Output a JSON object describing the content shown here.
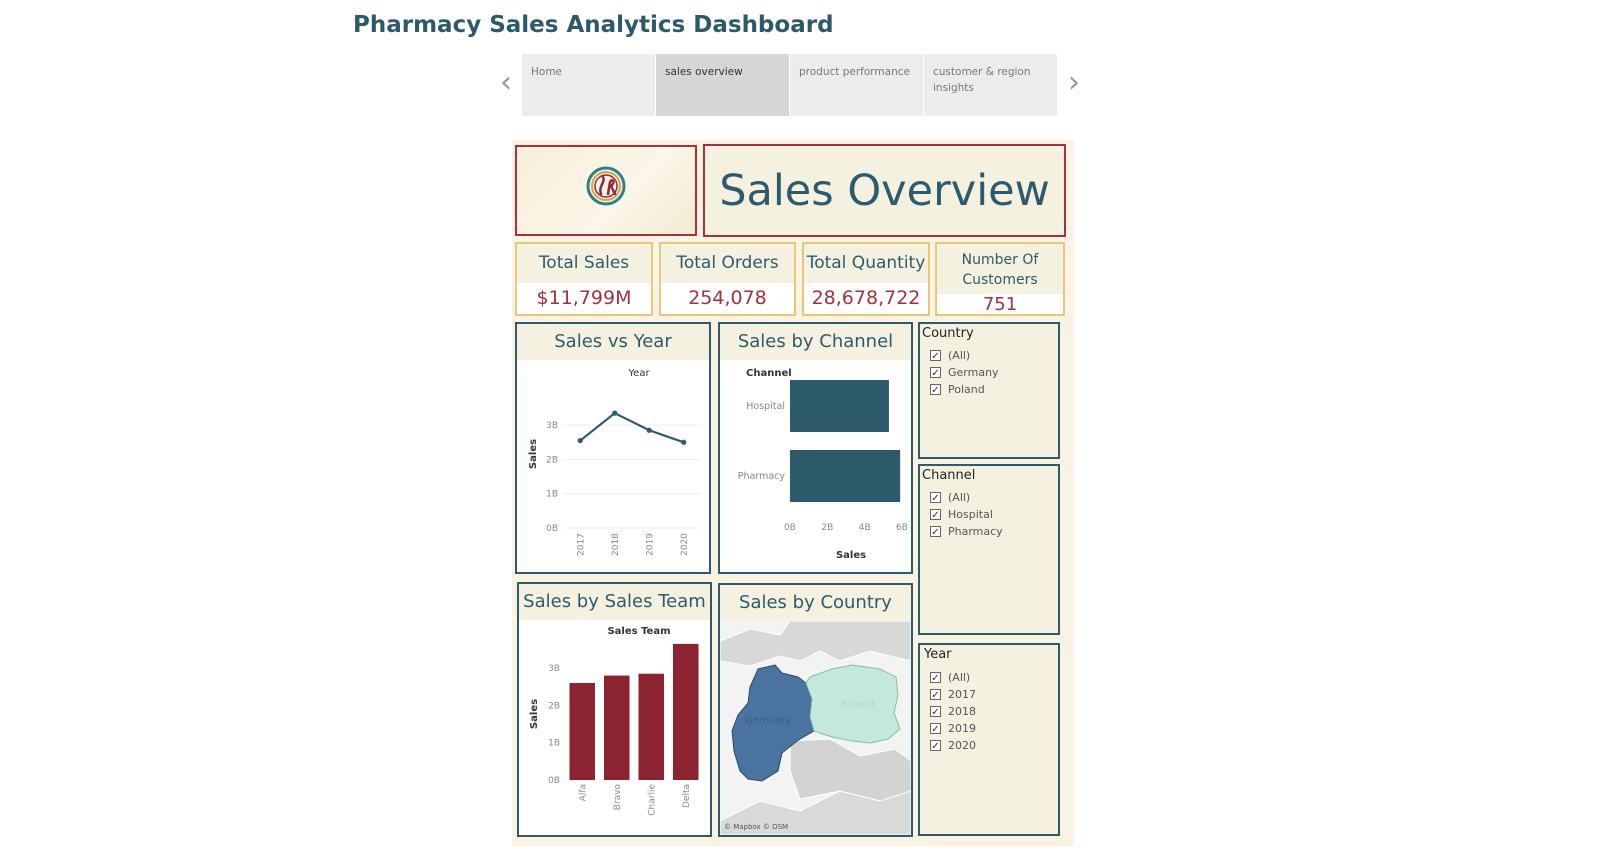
{
  "page": {
    "title": "Pharmacy Sales Analytics Dashboard"
  },
  "nav": {
    "tabs": [
      {
        "label": "Home",
        "active": false
      },
      {
        "label": "sales overview",
        "active": true
      },
      {
        "label": "product performance",
        "active": false
      },
      {
        "label": "customer & region insights",
        "active": false
      }
    ]
  },
  "header": {
    "title": "Sales Overview"
  },
  "kpis": [
    {
      "label": "Total Sales",
      "value": "$11,799M"
    },
    {
      "label": "Total Orders",
      "value": "254,078"
    },
    {
      "label": "Total Quantity",
      "value": "28,678,722"
    },
    {
      "label": "Number Of Customers",
      "value": "751"
    }
  ],
  "charts": {
    "sales_vs_year": {
      "title": "Sales vs Year",
      "chart_data": {
        "type": "line",
        "header": "Year",
        "ylabel": "Sales",
        "x": [
          "2017",
          "2018",
          "2019",
          "2020"
        ],
        "y_ticks": [
          "0B",
          "1B",
          "2B",
          "3B"
        ],
        "ylim": [
          0,
          4.2
        ],
        "values": [
          2.55,
          3.35,
          2.85,
          2.5
        ],
        "color": "#2e5b6b"
      }
    },
    "sales_by_channel": {
      "title": "Sales by Channel",
      "chart_data": {
        "type": "bar",
        "orientation": "horizontal",
        "header": "Channel",
        "xlabel": "Sales",
        "categories": [
          "Hospital",
          "Pharmacy"
        ],
        "values": [
          5.3,
          5.9
        ],
        "x_ticks": [
          "0B",
          "2B",
          "4B",
          "6B"
        ],
        "xlim": [
          0,
          6
        ],
        "color": "#2e5b6b"
      }
    },
    "sales_by_team": {
      "title": "Sales by Sales Team",
      "chart_data": {
        "type": "bar",
        "header": "Sales Team",
        "ylabel": "Sales",
        "categories": [
          "Alfa",
          "Bravo",
          "Charlie",
          "Delta"
        ],
        "values": [
          2.6,
          2.8,
          2.85,
          3.65
        ],
        "y_ticks": [
          "0B",
          "1B",
          "2B",
          "3B"
        ],
        "ylim": [
          0,
          3.7
        ],
        "color": "#8c2330"
      }
    },
    "sales_by_country": {
      "title": "Sales by Country",
      "regions": [
        {
          "name": "Germany",
          "color": "#4a73a0"
        },
        {
          "name": "Poland",
          "color": "#c4e8dc"
        }
      ],
      "attribution": "© Mapbox © OSM"
    }
  },
  "filters": [
    {
      "title": "Country",
      "options": [
        "(All)",
        "Germany",
        "Poland"
      ]
    },
    {
      "title": "Channel",
      "options": [
        "(All)",
        "Hospital",
        "Pharmacy"
      ]
    },
    {
      "title": "Year",
      "options": [
        "(All)",
        "2017",
        "2018",
        "2019",
        "2020"
      ]
    }
  ]
}
